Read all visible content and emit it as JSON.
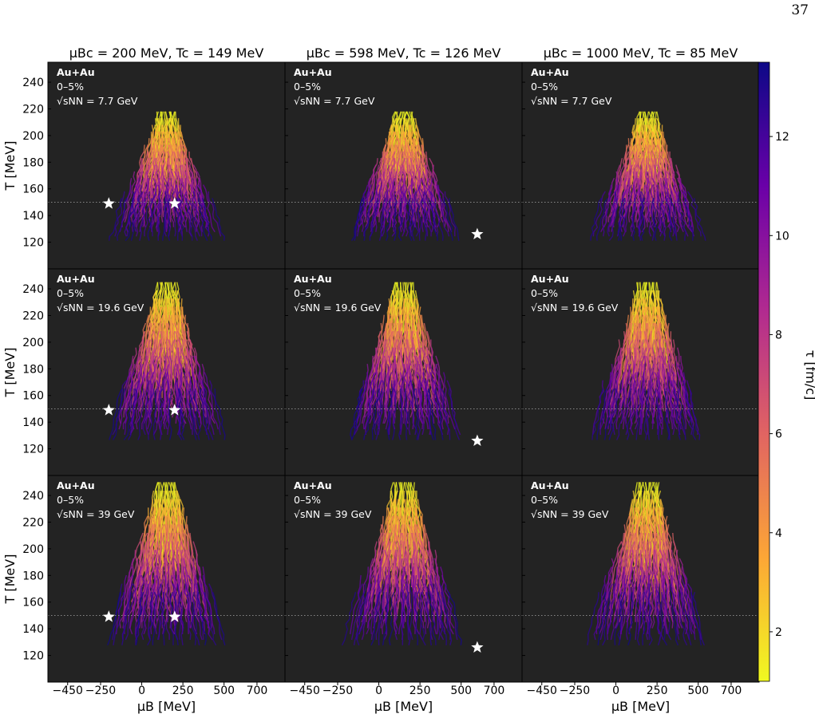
{
  "page_number": "37",
  "colorbar": {
    "label": "τ [fm/c]",
    "ticks": [
      2,
      4,
      6,
      8,
      10,
      12
    ],
    "range": [
      1,
      13.5
    ],
    "colormap": [
      "#f0f921",
      "#fca636",
      "#e16462",
      "#b12a90",
      "#6a00a8",
      "#0d0887"
    ]
  },
  "chart_data": {
    "type": "line",
    "description_grid": {
      "rows": 3,
      "cols": 3
    },
    "xlabel": "μB [MeV]",
    "ylabel": "T [MeV]",
    "xlim": [
      -570,
      870
    ],
    "ylim": [
      100,
      255
    ],
    "xticks": [
      -450,
      -250,
      0,
      250,
      500,
      700
    ],
    "yticks": [
      120,
      140,
      160,
      180,
      200,
      220,
      240
    ],
    "xtick_labels": [
      "−450",
      "−250",
      "0",
      "250",
      "500",
      "700"
    ],
    "dotted_reference_T": 150,
    "columns": [
      {
        "title_main": "μBc = 200 MeV,",
        "title_second": "Tc = 149 MeV",
        "muBc": 200,
        "Tc": 149,
        "stars": [
          {
            "muB": -200,
            "T": 149
          },
          {
            "muB": 200,
            "T": 149
          }
        ]
      },
      {
        "title_main": "μBc = 598 MeV,",
        "title_second": "Tc = 126 MeV",
        "muBc": 598,
        "Tc": 126,
        "stars": [
          {
            "muB": 598,
            "T": 126
          }
        ]
      },
      {
        "title_main": "μBc = 1000 MeV,",
        "title_second": "Tc = 85 MeV",
        "muBc": 1000,
        "Tc": 85,
        "stars": []
      }
    ],
    "rows": [
      {
        "system": "Au+Au",
        "centrality": "0–5%",
        "energy_label": "√sNN = 7.7 GeV",
        "sqrt_sNN": 7.7,
        "peak_T": 218
      },
      {
        "system": "Au+Au",
        "centrality": "0–5%",
        "energy_label": "√sNN = 19.6 GeV",
        "sqrt_sNN": 19.6,
        "peak_T": 245
      },
      {
        "system": "Au+Au",
        "centrality": "0–5%",
        "energy_label": "√sNN = 39 GeV",
        "sqrt_sNN": 39,
        "peak_T": 250
      }
    ]
  }
}
